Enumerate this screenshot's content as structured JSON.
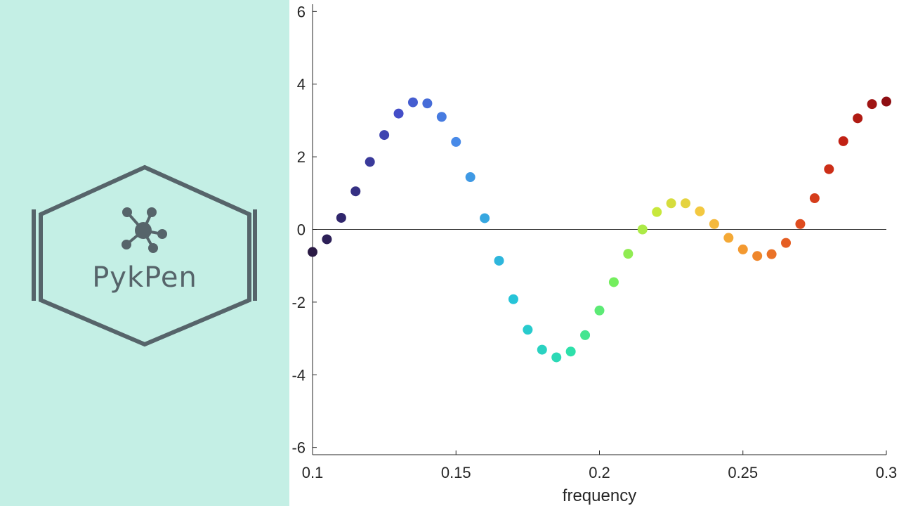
{
  "brand": {
    "name": "PykPen"
  },
  "colors": {
    "sidebar_bg": "#c4efe5",
    "logo": "#56646a",
    "axis": "#262626"
  },
  "chart_data": {
    "type": "scatter",
    "title": "",
    "xlabel": "frequency",
    "ylabel": "",
    "xlim": [
      0.1,
      0.3
    ],
    "ylim": [
      -6.2,
      6.2
    ],
    "grid": false,
    "zero_line": true,
    "colormap": "jet",
    "xticks": [
      0.1,
      0.15,
      0.2,
      0.25,
      0.3
    ],
    "xtick_labels": [
      "0.1",
      "0.15",
      "0.2",
      "0.25",
      "0.3"
    ],
    "yticks": [
      6,
      4,
      2,
      0,
      -2,
      -4,
      -6
    ],
    "ytick_labels": [
      "6",
      "4",
      "2",
      "0",
      "-2",
      "-4",
      "-6"
    ],
    "x": [
      0.1,
      0.105,
      0.11,
      0.115,
      0.12,
      0.125,
      0.13,
      0.135,
      0.14,
      0.145,
      0.15,
      0.155,
      0.16,
      0.165,
      0.17,
      0.175,
      0.18,
      0.185,
      0.19,
      0.195,
      0.2,
      0.205,
      0.21,
      0.215,
      0.22,
      0.225,
      0.23,
      0.235,
      0.24,
      0.245,
      0.25,
      0.255,
      0.26,
      0.265,
      0.27,
      0.275,
      0.28,
      0.285,
      0.29,
      0.295,
      0.3
    ],
    "y": [
      -0.62,
      -0.27,
      0.32,
      1.05,
      1.86,
      2.6,
      3.19,
      3.5,
      3.47,
      3.1,
      2.41,
      1.44,
      0.31,
      -0.86,
      -1.92,
      -2.76,
      -3.31,
      -3.52,
      -3.36,
      -2.91,
      -2.23,
      -1.45,
      -0.67,
      0.0,
      0.48,
      0.72,
      0.72,
      0.5,
      0.15,
      -0.23,
      -0.55,
      -0.73,
      -0.68,
      -0.37,
      0.15,
      0.86,
      1.66,
      2.43,
      3.06,
      3.45,
      3.52
    ]
  }
}
